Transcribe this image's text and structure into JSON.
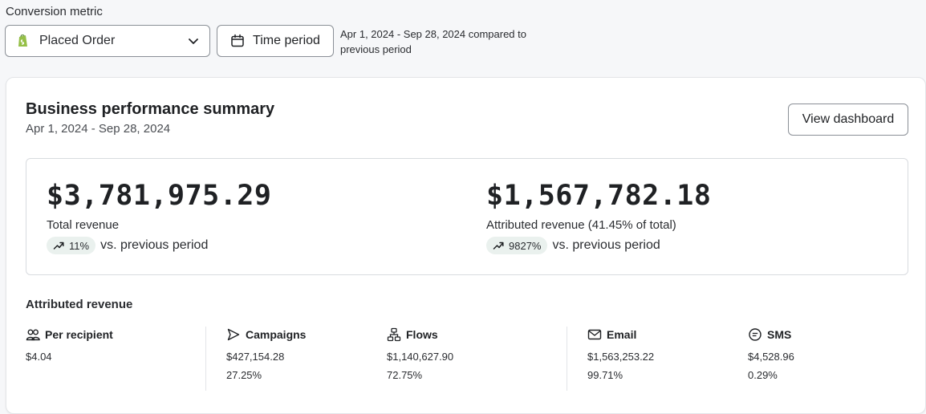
{
  "conversion": {
    "label": "Conversion metric",
    "selected": "Placed Order",
    "time_period_label": "Time period",
    "range_note": "Apr 1, 2024 - Sep 28, 2024 compared to previous period"
  },
  "summary": {
    "title": "Business performance summary",
    "date_range": "Apr 1, 2024 - Sep 28, 2024",
    "view_dashboard": "View dashboard",
    "total": {
      "value": "$3,781,975.29",
      "label": "Total revenue",
      "change": "11%",
      "vs": "vs. previous period"
    },
    "attributed": {
      "value": "$1,567,782.18",
      "label": "Attributed revenue (41.45% of total)",
      "change": "9827%",
      "vs": "vs. previous period"
    }
  },
  "attributed_section": {
    "heading": "Attributed revenue",
    "columns": [
      {
        "name": "Per recipient",
        "icon": "people-icon",
        "value": "$4.04",
        "percent": ""
      },
      {
        "name": "Campaigns",
        "icon": "send-icon",
        "value": "$427,154.28",
        "percent": "27.25%"
      },
      {
        "name": "Flows",
        "icon": "flow-icon",
        "value": "$1,140,627.90",
        "percent": "72.75%"
      },
      {
        "name": "Email",
        "icon": "email-icon",
        "value": "$1,563,253.22",
        "percent": "99.71%"
      },
      {
        "name": "SMS",
        "icon": "sms-icon",
        "value": "$4,528.96",
        "percent": "0.29%"
      }
    ]
  },
  "colors": {
    "shopify_green": "#95bf47",
    "pill_bg": "#eaf1ee",
    "border": "#8a8f96"
  }
}
